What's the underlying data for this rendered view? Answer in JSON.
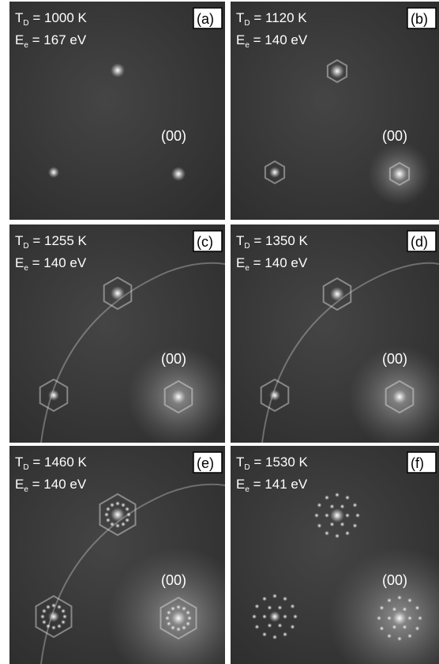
{
  "panels": [
    {
      "label": "(a)",
      "temperature": {
        "symbol": "T",
        "subscript": "D",
        "text": " = 1000 K"
      },
      "energy": {
        "symbol": "E",
        "subscript": "e",
        "text": " = 167 eV"
      },
      "spot": "(00)"
    },
    {
      "label": "(b)",
      "temperature": {
        "symbol": "T",
        "subscript": "D",
        "text": " = 1120 K"
      },
      "energy": {
        "symbol": "E",
        "subscript": "e",
        "text": " = 140 eV"
      },
      "spot": "(00)"
    },
    {
      "label": "(c)",
      "temperature": {
        "symbol": "T",
        "subscript": "D",
        "text": " = 1255 K"
      },
      "energy": {
        "symbol": "E",
        "subscript": "e",
        "text": " = 140 eV"
      },
      "spot": "(00)"
    },
    {
      "label": "(d)",
      "temperature": {
        "symbol": "T",
        "subscript": "D",
        "text": " = 1350 K"
      },
      "energy": {
        "symbol": "E",
        "subscript": "e",
        "text": " = 140 eV"
      },
      "spot": "(00)"
    },
    {
      "label": "(e)",
      "temperature": {
        "symbol": "T",
        "subscript": "D",
        "text": " = 1460 K"
      },
      "energy": {
        "symbol": "E",
        "subscript": "e",
        "text": " = 140 eV"
      },
      "spot": "(00)"
    },
    {
      "label": "(f)",
      "temperature": {
        "symbol": "T",
        "subscript": "D",
        "text": " = 1530 K"
      },
      "energy": {
        "symbol": "E",
        "subscript": "e",
        "text": " = 141 eV"
      },
      "spot": "(00)"
    }
  ]
}
